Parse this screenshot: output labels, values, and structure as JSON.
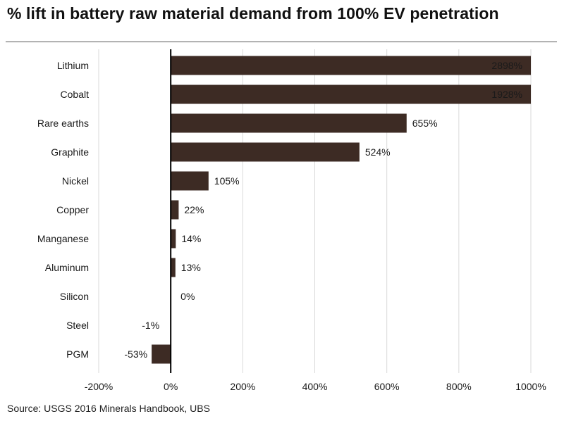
{
  "header": {
    "title": "% lift in battery raw material demand from 100% EV penetration",
    "source": "Source: USGS 2016 Minerals Handbook, UBS"
  },
  "chart_data": {
    "type": "bar",
    "orientation": "horizontal",
    "title": "% lift in battery raw material demand from 100% EV penetration",
    "xlabel": "",
    "ylabel": "",
    "categories": [
      "Lithium",
      "Cobalt",
      "Rare earths",
      "Graphite",
      "Nickel",
      "Copper",
      "Manganese",
      "Aluminum",
      "Silicon",
      "Steel",
      "PGM"
    ],
    "values": [
      2898,
      1928,
      655,
      524,
      105,
      22,
      14,
      13,
      0,
      -1,
      -53
    ],
    "data_labels": [
      "2898%",
      "1928%",
      "655%",
      "524%",
      "105%",
      "22%",
      "14%",
      "13%",
      "0%",
      "-1%",
      "-53%"
    ],
    "xlim": [
      -200,
      1000
    ],
    "xticks": [
      -200,
      0,
      200,
      400,
      600,
      800,
      1000
    ],
    "xtick_labels": [
      "-200%",
      "0%",
      "200%",
      "400%",
      "600%",
      "800%",
      "1000%"
    ],
    "grid": "vertical",
    "legend": "none",
    "bar_color": "#3d2b24",
    "grid_color": "#d9d9d9"
  }
}
